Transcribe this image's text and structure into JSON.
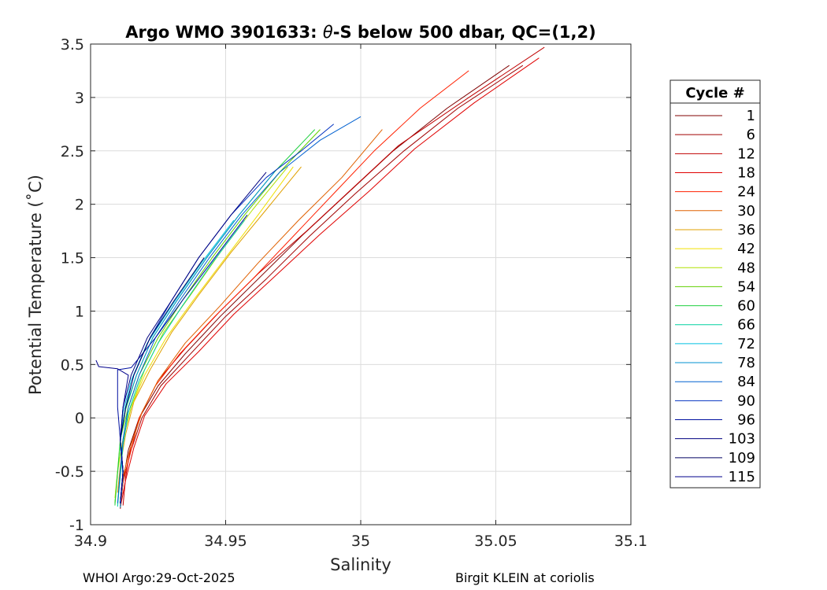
{
  "chart_data": {
    "type": "line",
    "title_prefix": "Argo WMO 3901633: ",
    "title_theta": "θ",
    "title_suffix": "-S below 500 dbar,  QC=(1,2)",
    "xlabel": "Salinity",
    "ylabel": "Potential Temperature (˚C)",
    "xlim": [
      34.9,
      35.1
    ],
    "ylim": [
      -1,
      3.5
    ],
    "xticks": [
      34.9,
      34.95,
      35,
      35.05,
      35.1
    ],
    "xtick_labels": [
      "34.9",
      "34.95",
      "35",
      "35.05",
      "35.1"
    ],
    "yticks": [
      -1,
      -0.5,
      0,
      0.5,
      1,
      1.5,
      2,
      2.5,
      3,
      3.5
    ],
    "ytick_labels": [
      "-1",
      "-0.5",
      "0",
      "0.5",
      "1",
      "1.5",
      "2",
      "2.5",
      "3",
      "3.5"
    ],
    "grid": true,
    "legend_title": "Cycle #",
    "legend_position": "outside-right",
    "series": [
      {
        "name": "1",
        "color": "#800000",
        "x": [
          34.911,
          34.912,
          34.914,
          34.918,
          34.925,
          34.935,
          34.948,
          34.962,
          34.978,
          34.995,
          35.012,
          35.032,
          35.055
        ],
        "y": [
          -0.85,
          -0.6,
          -0.3,
          0.0,
          0.3,
          0.6,
          0.95,
          1.3,
          1.7,
          2.1,
          2.5,
          2.9,
          3.3
        ]
      },
      {
        "name": "6",
        "color": "#A00000",
        "x": [
          34.911,
          34.912,
          34.915,
          34.919,
          34.926,
          34.937,
          34.95,
          34.965,
          34.981,
          34.998,
          35.016,
          35.036,
          35.06
        ],
        "y": [
          -0.85,
          -0.6,
          -0.3,
          0.0,
          0.3,
          0.6,
          0.95,
          1.3,
          1.7,
          2.1,
          2.5,
          2.9,
          3.3
        ]
      },
      {
        "name": "12",
        "color": "#C00000",
        "x": [
          34.912,
          34.913,
          34.915,
          34.919,
          34.925,
          34.935,
          34.948,
          34.962,
          34.98,
          34.997,
          35.014,
          35.04,
          35.068
        ],
        "y": [
          -0.82,
          -0.55,
          -0.25,
          0.05,
          0.35,
          0.65,
          1.0,
          1.35,
          1.75,
          2.15,
          2.55,
          3.0,
          3.47
        ]
      },
      {
        "name": "18",
        "color": "#E00000",
        "x": [
          34.911,
          34.913,
          34.916,
          34.92,
          34.928,
          34.94,
          34.953,
          34.968,
          34.985,
          35.003,
          35.02,
          35.042,
          35.066
        ],
        "y": [
          -0.84,
          -0.58,
          -0.28,
          0.02,
          0.32,
          0.62,
          0.97,
          1.32,
          1.72,
          2.12,
          2.52,
          2.95,
          3.37
        ]
      },
      {
        "name": "24",
        "color": "#FF2000",
        "x": [
          34.911,
          34.912,
          34.915,
          34.918,
          34.924,
          34.933,
          34.946,
          34.96,
          34.975,
          34.99,
          35.005,
          35.022,
          35.04
        ],
        "y": [
          -0.84,
          -0.6,
          -0.3,
          0.0,
          0.3,
          0.6,
          0.95,
          1.3,
          1.7,
          2.1,
          2.5,
          2.9,
          3.25
        ]
      },
      {
        "name": "30",
        "color": "#E06000",
        "x": [
          34.911,
          34.912,
          34.915,
          34.919,
          34.925,
          34.935,
          34.948,
          34.962,
          34.977,
          34.993,
          35.008
        ],
        "y": [
          -0.82,
          -0.55,
          -0.25,
          0.05,
          0.35,
          0.7,
          1.05,
          1.45,
          1.85,
          2.25,
          2.7
        ]
      },
      {
        "name": "36",
        "color": "#E0A000",
        "x": [
          34.91,
          34.911,
          34.913,
          34.916,
          34.922,
          34.93,
          34.94,
          34.952,
          34.965,
          34.978
        ],
        "y": [
          -0.7,
          -0.45,
          -0.15,
          0.15,
          0.45,
          0.8,
          1.15,
          1.55,
          1.95,
          2.35
        ]
      },
      {
        "name": "42",
        "color": "#F0E000",
        "x": [
          34.909,
          34.91,
          34.912,
          34.915,
          34.92,
          34.928,
          34.938,
          34.95,
          34.962,
          34.975
        ],
        "y": [
          -0.75,
          -0.5,
          -0.2,
          0.1,
          0.4,
          0.75,
          1.1,
          1.5,
          1.9,
          2.35
        ]
      },
      {
        "name": "48",
        "color": "#B0E000",
        "x": [
          34.909,
          34.91,
          34.912,
          34.915,
          34.92,
          34.927,
          34.937,
          34.948,
          34.96,
          34.973
        ],
        "y": [
          -0.8,
          -0.5,
          -0.2,
          0.1,
          0.45,
          0.8,
          1.15,
          1.55,
          1.95,
          2.35
        ]
      },
      {
        "name": "54",
        "color": "#60D000",
        "x": [
          34.909,
          34.91,
          34.911,
          34.914,
          34.918,
          34.925,
          34.934,
          34.945,
          34.957,
          34.97,
          34.985
        ],
        "y": [
          -0.8,
          -0.5,
          -0.2,
          0.1,
          0.4,
          0.75,
          1.1,
          1.5,
          1.9,
          2.3,
          2.7
        ]
      },
      {
        "name": "60",
        "color": "#20D040",
        "x": [
          34.909,
          34.91,
          34.911,
          34.913,
          34.917,
          34.923,
          34.932,
          34.943,
          34.955,
          34.968,
          34.983
        ],
        "y": [
          -0.82,
          -0.52,
          -0.22,
          0.08,
          0.4,
          0.75,
          1.1,
          1.5,
          1.9,
          2.3,
          2.7
        ]
      },
      {
        "name": "66",
        "color": "#00D0A0",
        "x": [
          34.91,
          34.911,
          34.912,
          34.914,
          34.918,
          34.925,
          34.934,
          34.945,
          34.957
        ],
        "y": [
          -0.83,
          -0.55,
          -0.25,
          0.05,
          0.35,
          0.7,
          1.05,
          1.45,
          1.85
        ]
      },
      {
        "name": "72",
        "color": "#00C0E0",
        "x": [
          34.911,
          34.912,
          34.911,
          34.912,
          34.915,
          34.921,
          34.93,
          34.941,
          34.953
        ],
        "y": [
          -0.84,
          -0.55,
          -0.25,
          0.05,
          0.35,
          0.7,
          1.05,
          1.45,
          1.85
        ]
      },
      {
        "name": "78",
        "color": "#0090D0",
        "x": [
          34.911,
          34.912,
          34.911,
          34.913,
          34.917,
          34.923,
          34.932,
          34.943,
          34.955,
          34.968
        ],
        "y": [
          -0.83,
          -0.5,
          -0.2,
          0.1,
          0.4,
          0.75,
          1.1,
          1.5,
          1.9,
          2.3
        ]
      },
      {
        "name": "84",
        "color": "#0060D0",
        "x": [
          34.91,
          34.911,
          34.912,
          34.914,
          34.918,
          34.924,
          34.933,
          34.944,
          34.956,
          34.97,
          34.985,
          35.0
        ],
        "y": [
          -0.8,
          -0.5,
          -0.2,
          0.1,
          0.4,
          0.75,
          1.1,
          1.5,
          1.9,
          2.3,
          2.6,
          2.82
        ]
      },
      {
        "name": "90",
        "color": "#0030C0",
        "x": [
          34.911,
          34.912,
          34.911,
          34.913,
          34.916,
          34.922,
          34.93,
          34.94,
          34.952,
          34.965,
          34.978,
          34.99
        ],
        "y": [
          -0.8,
          -0.5,
          -0.2,
          0.1,
          0.4,
          0.75,
          1.1,
          1.5,
          1.9,
          2.25,
          2.5,
          2.75
        ]
      },
      {
        "name": "96",
        "color": "#0010A0",
        "x": [
          34.911,
          34.912,
          34.911,
          34.91,
          34.91,
          34.915,
          34.924,
          34.934,
          34.946,
          34.958
        ],
        "y": [
          -0.8,
          -0.5,
          -0.2,
          0.1,
          0.45,
          0.47,
          0.75,
          1.1,
          1.5,
          1.9
        ]
      },
      {
        "name": "103",
        "color": "#000080",
        "x": [
          34.911,
          34.912,
          34.911,
          34.912,
          34.915,
          34.921,
          34.93,
          34.94,
          34.952,
          34.965
        ],
        "y": [
          -0.8,
          -0.5,
          -0.2,
          0.1,
          0.4,
          0.75,
          1.1,
          1.5,
          1.9,
          2.3
        ]
      },
      {
        "name": "109",
        "color": "#000060",
        "x": [
          34.911,
          34.912,
          34.911,
          34.913,
          34.916,
          34.922,
          34.931,
          34.942
        ],
        "y": [
          -0.8,
          -0.5,
          -0.2,
          0.1,
          0.4,
          0.75,
          1.1,
          1.5
        ]
      },
      {
        "name": "115",
        "color": "#00008B",
        "x": [
          34.911,
          34.912,
          34.911,
          34.912,
          34.914,
          34.91,
          34.903,
          34.902
        ],
        "y": [
          -0.8,
          -0.5,
          -0.2,
          0.1,
          0.4,
          0.46,
          0.48,
          0.54
        ]
      }
    ]
  },
  "footer": {
    "left": "WHOI Argo:29-Oct-2025",
    "right": "Birgit KLEIN at coriolis"
  }
}
